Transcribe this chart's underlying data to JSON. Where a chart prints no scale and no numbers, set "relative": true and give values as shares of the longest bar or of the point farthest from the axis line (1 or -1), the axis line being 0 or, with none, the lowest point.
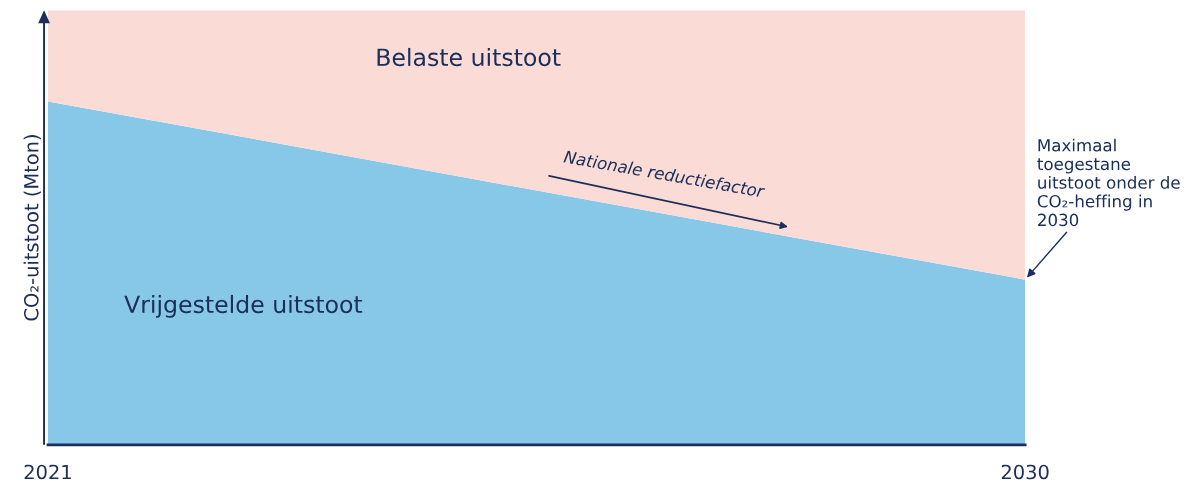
{
  "chart_data": {
    "type": "area",
    "stacked": true,
    "relative": true,
    "ylabel": "CO₂-uitstoot (Mton)",
    "categories": [
      "2021",
      "2030"
    ],
    "series": [
      {
        "name": "Vrijgestelde uitstoot",
        "color": "#87c8e8",
        "values": [
          0.79,
          0.38
        ]
      },
      {
        "name": "Belaste uitstoot",
        "color": "#fadbd6",
        "values": [
          0.21,
          0.62
        ]
      }
    ],
    "annotations": [
      "Nationale reductiefactor",
      {
        "text": "Maximaal toegestane uitstoot onder de CO₂-heffing in 2030",
        "x": "2030",
        "y": 0.38
      }
    ],
    "grid": false,
    "legend": false
  }
}
